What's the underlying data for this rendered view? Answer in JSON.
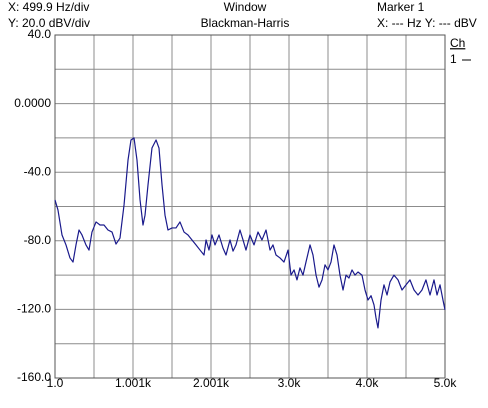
{
  "chart_data": {
    "type": "line",
    "header": {
      "x_scale": "X: 499.9 Hz/div",
      "y_scale": "Y: 20.0 dBV/div",
      "window_label": "Window",
      "window": "Blackman-Harris",
      "marker": "Marker 1",
      "marker_readout": "X: --- Hz Y: --- dBV"
    },
    "legend_title": "Ch",
    "xlim": [
      1,
      5000
    ],
    "ylim": [
      -160,
      40
    ],
    "xticks": [
      {
        "value": 1,
        "label": "1.0"
      },
      {
        "value": 1000.8,
        "label": "1.001k"
      },
      {
        "value": 2000.6,
        "label": "2.001k"
      },
      {
        "value": 3000.4,
        "label": "3.0k"
      },
      {
        "value": 4000.2,
        "label": "4.0k"
      },
      {
        "value": 5000,
        "label": "5.0k"
      }
    ],
    "yticks": [
      {
        "value": 40,
        "label": "40.0"
      },
      {
        "value": 0,
        "label": "0.0000"
      },
      {
        "value": -40,
        "label": "-40.0"
      },
      {
        "value": -80,
        "label": "-80.0"
      },
      {
        "value": -120,
        "label": "-120.0"
      },
      {
        "value": -160,
        "label": "-160.0"
      }
    ],
    "xgrid": [
      1,
      500.9,
      1000.8,
      1500.7,
      2000.6,
      2500.5,
      3000.4,
      3500.3,
      4000.2,
      4500.1,
      5000
    ],
    "ygrid": [
      40,
      20,
      0,
      -20,
      -40,
      -60,
      -80,
      -100,
      -120,
      -140,
      -160
    ],
    "grid": true,
    "x": [
      1,
      39,
      91,
      142,
      193,
      232,
      270,
      309,
      347,
      398,
      437,
      475,
      527,
      578,
      629,
      680,
      732,
      783,
      834,
      886,
      937,
      975,
      1014,
      1052,
      1091,
      1129,
      1155,
      1193,
      1244,
      1296,
      1334,
      1373,
      1411,
      1449,
      1501,
      1552,
      1603,
      1655,
      1706,
      1757,
      1808,
      1860,
      1911,
      1937,
      1975,
      2013,
      2052,
      2103,
      2154,
      2193,
      2244,
      2283,
      2321,
      2372,
      2411,
      2449,
      2500,
      2552,
      2603,
      2654,
      2706,
      2757,
      2795,
      2834,
      2885,
      2936,
      2988,
      3026,
      3065,
      3103,
      3141,
      3180,
      3218,
      3270,
      3308,
      3347,
      3385,
      3424,
      3462,
      3500,
      3539,
      3577,
      3616,
      3654,
      3693,
      3731,
      3769,
      3808,
      3846,
      3885,
      3936,
      3975,
      4013,
      4052,
      4090,
      4116,
      4141,
      4180,
      4218,
      4257,
      4295,
      4346,
      4398,
      4449,
      4500,
      4551,
      4603,
      4654,
      4705,
      4756,
      4808,
      4859,
      4898,
      4936,
      4974,
      5000
    ],
    "series": [
      {
        "name": "1",
        "color": "#1a1a8c",
        "values": [
          -56.2,
          -62,
          -76.6,
          -82.4,
          -90,
          -92.4,
          -82.4,
          -73.7,
          -76.6,
          -82.4,
          -85.4,
          -74.9,
          -69,
          -70.8,
          -70.8,
          -73.7,
          -74.9,
          -81.9,
          -78.4,
          -59.1,
          -32.9,
          -21.2,
          -20,
          -32.9,
          -56.2,
          -70.8,
          -65,
          -47.5,
          -25.9,
          -21.2,
          -25.9,
          -47.5,
          -65,
          -73.7,
          -72.5,
          -72.5,
          -69,
          -74.9,
          -76.6,
          -79.5,
          -82.4,
          -85.4,
          -88.3,
          -79.5,
          -85.4,
          -76.6,
          -82.4,
          -76.6,
          -84.2,
          -88.3,
          -79.5,
          -86,
          -82.4,
          -73.7,
          -79.5,
          -85.4,
          -76.6,
          -82.4,
          -74.9,
          -79.5,
          -73.7,
          -85.4,
          -82.4,
          -88.3,
          -90,
          -92.4,
          -85.4,
          -100,
          -97,
          -102.8,
          -95.8,
          -100,
          -92.4,
          -82.4,
          -88.3,
          -100,
          -107,
          -102.8,
          -94,
          -97,
          -92.4,
          -82.4,
          -88.3,
          -100,
          -108.7,
          -100,
          -101.7,
          -97,
          -100,
          -98.2,
          -100,
          -108.7,
          -114.5,
          -112,
          -117.4,
          -125,
          -130.8,
          -114.5,
          -105.7,
          -111.6,
          -104,
          -100,
          -102.8,
          -108.7,
          -105.7,
          -102.8,
          -108.7,
          -111.6,
          -108.7,
          -102.8,
          -111.6,
          -102.8,
          -111.6,
          -105.7,
          -114.5,
          -120.3
        ]
      }
    ]
  }
}
